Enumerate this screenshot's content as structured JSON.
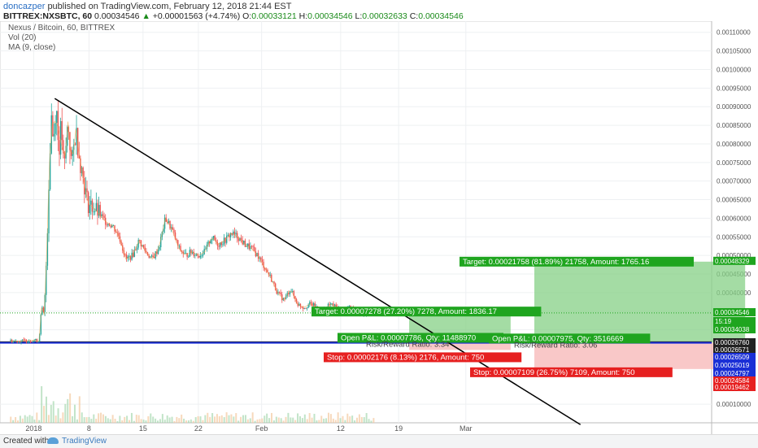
{
  "header": {
    "user": "doncazper",
    "published": "published on TradingView.com, February 12, 2018 21:44 EST",
    "symbol": "BITTREX:NXSBTC, 60",
    "last": "0.00034546",
    "arrow": "▲",
    "change": "+0.00001563 (+4.74%)",
    "o_label": "O:",
    "o": "0.00033121",
    "h_label": "H:",
    "h": "0.00034546",
    "l_label": "L:",
    "l": "0.00032633",
    "c_label": "C:",
    "c": "0.00034546"
  },
  "legend": {
    "name": "Nexus / Bitcoin, 60, BITTREX",
    "vol": "Vol (20)",
    "ma": "MA (9, close)"
  },
  "footer": {
    "created": "Created with",
    "brand": "TradingView",
    "icon": "tradingview-cloud-icon"
  },
  "chart_data": {
    "type": "candlestick",
    "x_tick_labels": [
      "2018",
      "8",
      "15",
      "22",
      "Feb",
      "12",
      "19",
      "Mar"
    ],
    "y_tick_labels": [
      "0.00110000",
      "0.00105000",
      "0.00100000",
      "0.00095000",
      "0.00090000",
      "0.00085000",
      "0.00080000",
      "0.00075000",
      "0.00070000",
      "0.00065000",
      "0.00060000",
      "0.00055000",
      "0.00050000",
      "0.00045000",
      "0.00040000",
      "0.00035000",
      "0.00030000",
      "0.00010000"
    ],
    "ylim": [
      5e-05,
      0.00113
    ],
    "price_path": [
      [
        0.2,
        0.00027
      ],
      [
        1,
        0.00027
      ],
      [
        2,
        0.000272
      ],
      [
        2.4,
        0.00027
      ],
      [
        2.6,
        0.00036
      ],
      [
        2.8,
        0.00034
      ],
      [
        3.0,
        0.00052
      ],
      [
        3.2,
        0.00075
      ],
      [
        3.35,
        0.00088
      ],
      [
        3.5,
        0.0008
      ],
      [
        3.7,
        0.00092
      ],
      [
        3.9,
        0.00078
      ],
      [
        4.1,
        0.00085
      ],
      [
        4.3,
        0.00072
      ],
      [
        4.6,
        0.00086
      ],
      [
        4.9,
        0.00074
      ],
      [
        5.2,
        0.00084
      ],
      [
        5.5,
        0.00076
      ],
      [
        5.8,
        0.0007
      ],
      [
        6.1,
        0.00064
      ],
      [
        6.5,
        0.00063
      ],
      [
        7,
        0.00061
      ],
      [
        7.5,
        0.00059
      ],
      [
        8,
        0.00058
      ],
      [
        8.5,
        0.00055
      ],
      [
        9,
        0.00049
      ],
      [
        9.5,
        0.0005
      ],
      [
        10,
        0.00054
      ],
      [
        10.5,
        0.00051
      ],
      [
        11,
        0.00049
      ],
      [
        11.5,
        0.00052
      ],
      [
        12,
        0.0006
      ],
      [
        12.5,
        0.00057
      ],
      [
        13,
        0.00052
      ],
      [
        13.5,
        0.0005
      ],
      [
        14,
        0.00051
      ],
      [
        14.5,
        0.0005
      ],
      [
        15,
        0.00051
      ],
      [
        15.5,
        0.00055
      ],
      [
        16,
        0.00053
      ],
      [
        16.5,
        0.00054
      ],
      [
        17,
        0.00056
      ],
      [
        17.5,
        0.00055
      ],
      [
        18,
        0.00053
      ],
      [
        18.5,
        0.00052
      ],
      [
        19,
        0.0005
      ],
      [
        19.5,
        0.00047
      ],
      [
        20,
        0.00044
      ],
      [
        20.5,
        0.0004
      ],
      [
        21,
        0.00038
      ],
      [
        21.5,
        0.00041
      ],
      [
        22,
        0.00037
      ],
      [
        22.5,
        0.00036
      ],
      [
        23,
        0.00037
      ],
      [
        23.5,
        0.00036
      ],
      [
        24,
        0.00035
      ],
      [
        24.5,
        0.00037
      ],
      [
        25,
        0.00036
      ],
      [
        25.5,
        0.00035
      ],
      [
        26,
        0.00036
      ],
      [
        26.5,
        0.00035
      ],
      [
        27,
        0.00034
      ],
      [
        27.5,
        0.00035
      ],
      [
        27.8,
        0.00034546
      ]
    ],
    "trendline": [
      [
        3.6,
        0.000922
      ],
      [
        43.5,
        4.5e-05
      ]
    ],
    "current_price": 0.00034546,
    "positions": [
      {
        "entry": 0.0002676,
        "target": 0.00034038,
        "stop": 0.00024584,
        "x": [
          30.5,
          38.2
        ],
        "target_label": "Target: 0.00007278 (27.20%) 7278, Amount: 1836.17",
        "open_label": "Open P&L: 0.00007786, Qty: 11488970",
        "rr_label": "Risk/Reward Ratio: 3.34",
        "stop_label": "Stop: 0.00002176 (8.13%) 2176, Amount: 750"
      },
      {
        "entry": 0.00026571,
        "target": 0.00048329,
        "stop": 0.00019462,
        "x": [
          40,
          56
        ],
        "target_label": "Target: 0.00021758 (81.89%) 21758, Amount: 1765.16",
        "open_label": "Open P&L: 0.00007975, Qty: 3516669",
        "rr_label": "Risk/Reward Ratio: 3.06",
        "stop_label": "Stop: 0.00007109 (26.75%) 7109, Amount: 750"
      }
    ],
    "horizontal_lines": [
      0.0002676,
      0.00026509
    ],
    "price_tags": [
      {
        "text": "0.00048329",
        "value": 0.00048329,
        "color": "#1fa51f"
      },
      {
        "text": "0.00034546",
        "value": 0.00034546,
        "color": "#1fa51f"
      },
      {
        "text": "15:19",
        "value": 0.000332,
        "color": "#1fa51f"
      },
      {
        "text": "0.00034038",
        "value": 0.00034038,
        "color": "#1fa51f"
      },
      {
        "text": "0.00026760",
        "value": 0.0002676,
        "color": "#222222"
      },
      {
        "text": "0.00026571",
        "value": 0.00026571,
        "color": "#222222"
      },
      {
        "text": "0.00026509",
        "value": 0.00026509,
        "color": "#1a2fd6"
      },
      {
        "text": "0.00025019",
        "value": 0.00025019,
        "color": "#1a2fd6"
      },
      {
        "text": "0.00024797",
        "value": 0.00024797,
        "color": "#1a2fd6"
      },
      {
        "text": "0.00024584",
        "value": 0.00024584,
        "color": "#e62020"
      },
      {
        "text": "0.00019462",
        "value": 0.00019462,
        "color": "#e62020"
      }
    ],
    "colors": {
      "up": "#26a69a",
      "down": "#ef5350",
      "profit": "#86d086",
      "loss": "#f7b5b5",
      "trend": "#000000",
      "hline": "#1a2fd6"
    }
  }
}
